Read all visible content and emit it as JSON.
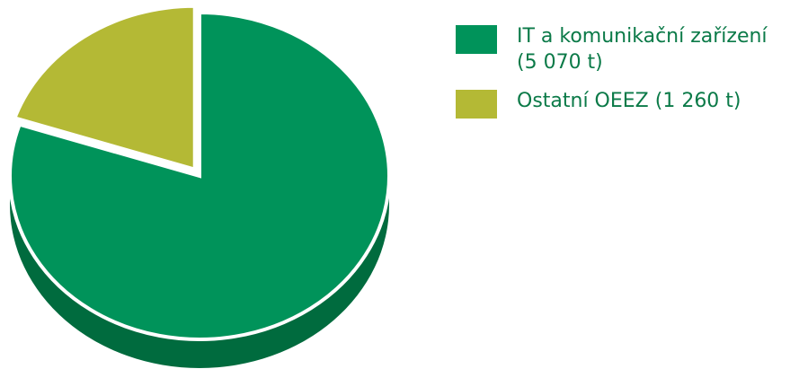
{
  "chart_data": {
    "type": "pie",
    "style": "3d",
    "slices": [
      {
        "label": "IT a komunikační zařízení\n(5 070 t)",
        "value": 5070,
        "color": "#00935a",
        "side_color": "#006b3e"
      },
      {
        "label": "Ostatní OEEZ (1 260 t)",
        "value": 1260,
        "color": "#b4b935",
        "side_color": "#7c7f1d"
      }
    ],
    "legend_position": "right"
  }
}
